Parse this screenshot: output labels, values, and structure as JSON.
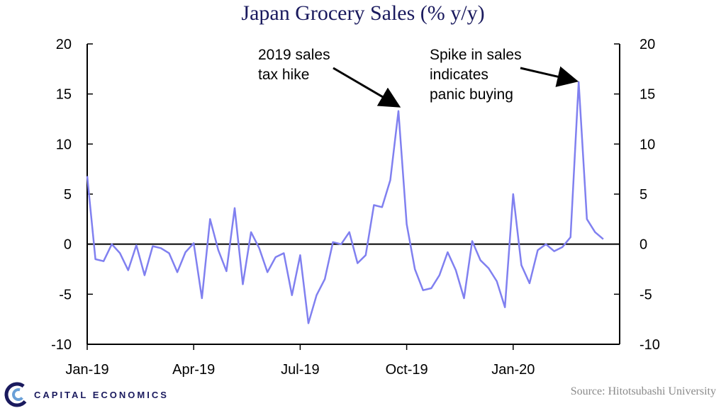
{
  "chart_data": {
    "type": "line",
    "title": "Japan Grocery Sales (% y/y)",
    "ylim": [
      -10,
      20
    ],
    "yticks": [
      -10,
      -5,
      0,
      5,
      10,
      15,
      20
    ],
    "ytick_labels": [
      "-10",
      "-5",
      "0",
      "5",
      "10",
      "15",
      "20"
    ],
    "xtick_labels": [
      "Jan-19",
      "Apr-19",
      "Jul-19",
      "Oct-19",
      "Jan-20"
    ],
    "xtick_weeks": [
      0,
      13,
      26,
      39,
      52
    ],
    "series_color": "#8080f0",
    "series": [
      {
        "name": "Japan Grocery Sales (% y/y)",
        "start_week": 0,
        "values": [
          6.8,
          -1.5,
          -1.7,
          0.0,
          -0.9,
          -2.6,
          -0.1,
          -3.1,
          -0.2,
          -0.4,
          -0.9,
          -2.8,
          -0.8,
          0.1,
          -5.4,
          2.5,
          -0.6,
          -2.7,
          3.6,
          -4.0,
          1.2,
          -0.4,
          -2.8,
          -1.3,
          -0.9,
          -5.1,
          -1.1,
          -7.9,
          -5.1,
          -3.5,
          0.2,
          0.0,
          1.2,
          -1.9,
          -1.1,
          3.9,
          3.7,
          6.4,
          13.3,
          2.0,
          -2.5,
          -4.6,
          -4.4,
          -3.1,
          -0.8,
          -2.6,
          -5.4,
          0.3,
          -1.6,
          -2.4,
          -3.7,
          -6.3,
          5.0,
          -2.1,
          -3.9,
          -0.6,
          0.0,
          -0.7,
          -0.3,
          0.7,
          16.2,
          2.5,
          1.2,
          0.5
        ]
      }
    ],
    "annotations": [
      {
        "lines": [
          "2019 sales",
          "tax hike"
        ],
        "target_week": 38,
        "target_value": 13.3
      },
      {
        "lines": [
          "Spike in sales",
          "indicates",
          "panic buying"
        ],
        "target_week": 60,
        "target_value": 16.2
      }
    ]
  },
  "footer": {
    "brand": "CAPITAL ECONOMICS",
    "source": "Source: Hitotsubashi University"
  }
}
